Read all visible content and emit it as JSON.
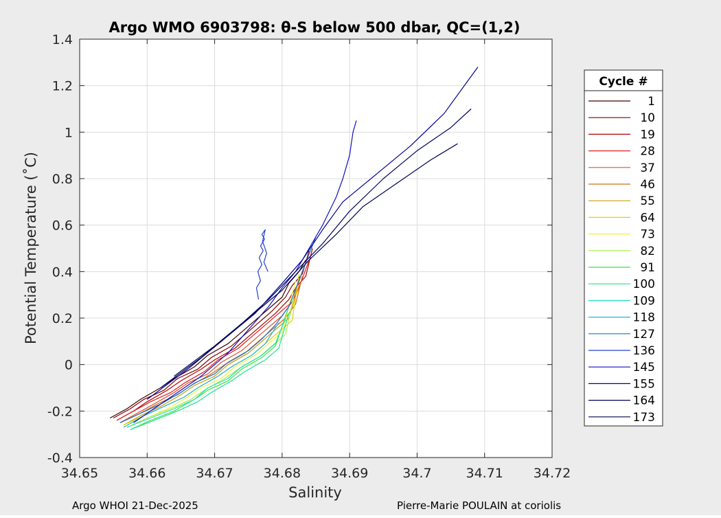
{
  "chart_data": {
    "type": "line",
    "title": "Argo WMO 6903798: θ-S below 500 dbar,  QC=(1,2)",
    "xlabel": "Salinity",
    "ylabel": "Potential Temperature (˚C)",
    "xlim": [
      34.65,
      34.72
    ],
    "ylim": [
      -0.4,
      1.4
    ],
    "xticks": [
      "34.65",
      "34.66",
      "34.67",
      "34.68",
      "34.69",
      "34.7",
      "34.71",
      "34.72"
    ],
    "yticks": [
      "-0.4",
      "-0.2",
      "0",
      "0.2",
      "0.4",
      "0.6",
      "0.8",
      "1",
      "1.2",
      "1.4"
    ],
    "grid": true,
    "legend": {
      "title": "Cycle #",
      "placement": "right",
      "entries": [
        {
          "label": "1",
          "color": "#3d0000"
        },
        {
          "label": "10",
          "color": "#800000"
        },
        {
          "label": "19",
          "color": "#b00000"
        },
        {
          "label": "28",
          "color": "#d82020"
        },
        {
          "label": "37",
          "color": "#e05030"
        },
        {
          "label": "46",
          "color": "#d07010"
        },
        {
          "label": "55",
          "color": "#c0a010"
        },
        {
          "label": "64",
          "color": "#e0d000"
        },
        {
          "label": "73",
          "color": "#f0f040"
        },
        {
          "label": "82",
          "color": "#a0f040"
        },
        {
          "label": "91",
          "color": "#40e040"
        },
        {
          "label": "100",
          "color": "#20e090"
        },
        {
          "label": "109",
          "color": "#20e0c0"
        },
        {
          "label": "118",
          "color": "#20b0e0"
        },
        {
          "label": "127",
          "color": "#2070c0"
        },
        {
          "label": "136",
          "color": "#2040d0"
        },
        {
          "label": "145",
          "color": "#1010c0"
        },
        {
          "label": "155",
          "color": "#000090"
        },
        {
          "label": "164",
          "color": "#000060"
        },
        {
          "label": "173",
          "color": "#000050"
        }
      ]
    },
    "series": [
      {
        "color": "#3d0000",
        "x": [
          34.6545,
          34.657,
          34.659,
          34.662,
          34.664,
          34.667,
          34.669,
          34.672,
          34.674,
          34.676,
          34.678,
          34.68,
          34.681,
          34.6825,
          34.6835
        ],
        "y": [
          -0.23,
          -0.19,
          -0.15,
          -0.1,
          -0.06,
          -0.01,
          0.04,
          0.09,
          0.14,
          0.19,
          0.24,
          0.29,
          0.35,
          0.4,
          0.45
        ]
      },
      {
        "color": "#800000",
        "x": [
          34.655,
          34.6575,
          34.6595,
          34.6625,
          34.6645,
          34.6675,
          34.6695,
          34.6725,
          34.6745,
          34.6765,
          34.6785,
          34.6805,
          34.6815,
          34.683,
          34.684
        ],
        "y": [
          -0.23,
          -0.19,
          -0.15,
          -0.11,
          -0.06,
          -0.02,
          0.03,
          0.08,
          0.13,
          0.18,
          0.23,
          0.29,
          0.34,
          0.39,
          0.49
        ]
      },
      {
        "color": "#b00000",
        "x": [
          34.6555,
          34.658,
          34.66,
          34.663,
          34.665,
          34.668,
          34.67,
          34.673,
          34.675,
          34.677,
          34.679,
          34.681,
          34.682,
          34.6835,
          34.6845
        ],
        "y": [
          -0.24,
          -0.2,
          -0.16,
          -0.11,
          -0.07,
          -0.02,
          0.02,
          0.07,
          0.12,
          0.17,
          0.22,
          0.28,
          0.33,
          0.38,
          0.5
        ]
      },
      {
        "color": "#d82020",
        "x": [
          34.6555,
          34.658,
          34.6605,
          34.6635,
          34.6655,
          34.6685,
          34.6705,
          34.6735,
          34.6755,
          34.6775,
          34.6795,
          34.6815,
          34.6825,
          34.684
        ],
        "y": [
          -0.24,
          -0.2,
          -0.16,
          -0.12,
          -0.08,
          -0.03,
          0.02,
          0.07,
          0.12,
          0.17,
          0.22,
          0.27,
          0.33,
          0.45
        ]
      },
      {
        "color": "#e05030",
        "x": [
          34.656,
          34.6585,
          34.661,
          34.664,
          34.666,
          34.669,
          34.671,
          34.674,
          34.676,
          34.678,
          34.68,
          34.6815,
          34.683
        ],
        "y": [
          -0.25,
          -0.21,
          -0.17,
          -0.12,
          -0.08,
          -0.04,
          0.01,
          0.06,
          0.11,
          0.16,
          0.21,
          0.27,
          0.4
        ]
      },
      {
        "color": "#d07010",
        "x": [
          34.656,
          34.659,
          34.6615,
          34.6645,
          34.6665,
          34.6695,
          34.6715,
          34.6745,
          34.6765,
          34.6785,
          34.6805,
          34.682,
          34.683
        ],
        "y": [
          -0.25,
          -0.21,
          -0.17,
          -0.13,
          -0.09,
          -0.04,
          0.0,
          0.05,
          0.1,
          0.15,
          0.2,
          0.26,
          0.38
        ]
      },
      {
        "color": "#c0a010",
        "x": [
          34.6565,
          34.659,
          34.662,
          34.665,
          34.667,
          34.67,
          34.672,
          34.675,
          34.677,
          34.679,
          34.681,
          34.6825
        ],
        "y": [
          -0.26,
          -0.22,
          -0.18,
          -0.13,
          -0.09,
          -0.05,
          0.0,
          0.05,
          0.1,
          0.15,
          0.2,
          0.34
        ]
      },
      {
        "color": "#e0d000",
        "x": [
          34.6565,
          34.6595,
          34.6625,
          34.6655,
          34.6675,
          34.6705,
          34.6725,
          34.6755,
          34.6775,
          34.6795,
          34.6815,
          34.6825
        ],
        "y": [
          -0.26,
          -0.22,
          -0.18,
          -0.14,
          -0.1,
          -0.05,
          -0.01,
          0.04,
          0.09,
          0.14,
          0.19,
          0.39
        ]
      },
      {
        "color": "#f0f040",
        "x": [
          34.657,
          34.66,
          34.663,
          34.666,
          34.668,
          34.671,
          34.673,
          34.676,
          34.678,
          34.68,
          34.682
        ],
        "y": [
          -0.27,
          -0.23,
          -0.19,
          -0.14,
          -0.1,
          -0.06,
          -0.01,
          0.04,
          0.09,
          0.14,
          0.36
        ]
      },
      {
        "color": "#a0f040",
        "x": [
          34.657,
          34.66,
          34.6635,
          34.6665,
          34.6685,
          34.6715,
          34.6735,
          34.6765,
          34.6785,
          34.6805,
          34.682
        ],
        "y": [
          -0.27,
          -0.23,
          -0.19,
          -0.15,
          -0.11,
          -0.06,
          -0.02,
          0.03,
          0.08,
          0.13,
          0.33
        ]
      },
      {
        "color": "#40e040",
        "x": [
          34.6575,
          34.6605,
          34.664,
          34.667,
          34.669,
          34.672,
          34.674,
          34.677,
          34.679,
          34.681
        ],
        "y": [
          -0.28,
          -0.24,
          -0.2,
          -0.15,
          -0.11,
          -0.07,
          -0.02,
          0.03,
          0.08,
          0.25
        ]
      },
      {
        "color": "#20e090",
        "x": [
          34.6575,
          34.661,
          34.6645,
          34.6675,
          34.6695,
          34.6725,
          34.6745,
          34.6775,
          34.6795,
          34.681
        ],
        "y": [
          -0.28,
          -0.24,
          -0.2,
          -0.16,
          -0.12,
          -0.07,
          -0.03,
          0.02,
          0.07,
          0.22
        ]
      },
      {
        "color": "#20e0c0",
        "x": [
          34.657,
          34.6605,
          34.664,
          34.667,
          34.669,
          34.672,
          34.674,
          34.677,
          34.679,
          34.6805
        ],
        "y": [
          -0.27,
          -0.23,
          -0.19,
          -0.15,
          -0.1,
          -0.06,
          -0.01,
          0.04,
          0.09,
          0.2
        ]
      },
      {
        "color": "#20b0e0",
        "x": [
          34.6565,
          34.6595,
          34.6625,
          34.6655,
          34.6675,
          34.6705,
          34.6725,
          34.6755,
          34.6775,
          34.6795
        ],
        "y": [
          -0.27,
          -0.22,
          -0.18,
          -0.14,
          -0.1,
          -0.05,
          -0.01,
          0.04,
          0.09,
          0.18
        ]
      },
      {
        "color": "#2070c0",
        "x": [
          34.656,
          34.659,
          34.662,
          34.665,
          34.667,
          34.67,
          34.672,
          34.675,
          34.677,
          34.679,
          34.681,
          34.683,
          34.685
        ],
        "y": [
          -0.25,
          -0.21,
          -0.17,
          -0.12,
          -0.08,
          -0.04,
          0.01,
          0.06,
          0.11,
          0.17,
          0.25,
          0.4,
          0.55
        ]
      },
      {
        "color": "#2040d0",
        "x": [
          34.6765,
          34.6762,
          34.6768,
          34.6764,
          34.677,
          34.6766,
          34.6772,
          34.6768,
          34.6774,
          34.677,
          34.6775,
          34.6771,
          34.6777,
          34.6773,
          34.6779
        ],
        "y": [
          0.28,
          0.33,
          0.36,
          0.4,
          0.43,
          0.46,
          0.49,
          0.51,
          0.54,
          0.56,
          0.58,
          0.53,
          0.48,
          0.44,
          0.4
        ]
      },
      {
        "color": "#1010c0",
        "x": [
          34.658,
          34.663,
          34.668,
          34.672,
          34.675,
          34.678,
          34.68,
          34.682,
          34.684,
          34.686,
          34.688,
          34.689,
          34.69,
          34.6905,
          34.691
        ],
        "y": [
          -0.25,
          -0.15,
          -0.05,
          0.05,
          0.15,
          0.25,
          0.33,
          0.4,
          0.5,
          0.6,
          0.72,
          0.8,
          0.9,
          1.0,
          1.05
        ]
      },
      {
        "color": "#000090",
        "x": [
          34.66,
          34.666,
          34.671,
          34.676,
          34.68,
          34.683,
          34.686,
          34.689,
          34.694,
          34.699,
          34.704,
          34.709
        ],
        "y": [
          -0.15,
          -0.02,
          0.1,
          0.22,
          0.35,
          0.45,
          0.58,
          0.7,
          0.82,
          0.94,
          1.08,
          1.28
        ]
      },
      {
        "color": "#000060",
        "x": [
          34.662,
          34.668,
          34.673,
          34.678,
          34.682,
          34.686,
          34.69,
          34.695,
          34.7,
          34.705,
          34.708
        ],
        "y": [
          -0.1,
          0.03,
          0.15,
          0.28,
          0.4,
          0.52,
          0.66,
          0.8,
          0.92,
          1.02,
          1.1
        ]
      },
      {
        "color": "#000050",
        "x": [
          34.664,
          34.67,
          34.675,
          34.68,
          34.684,
          34.688,
          34.692,
          34.697,
          34.702,
          34.706
        ],
        "y": [
          -0.05,
          0.08,
          0.2,
          0.32,
          0.45,
          0.56,
          0.68,
          0.78,
          0.88,
          0.95
        ]
      }
    ]
  },
  "footer": {
    "left": "Argo WHOI 21-Dec-2025",
    "right": "Pierre-Marie POULAIN at coriolis"
  }
}
